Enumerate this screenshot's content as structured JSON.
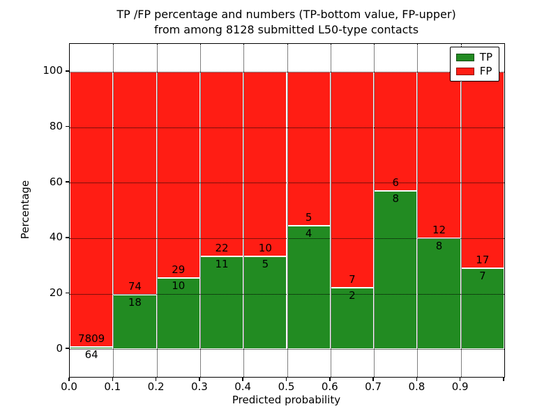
{
  "title": {
    "line1": "TP /FP percentage and numbers (TP-bottom value, FP-upper)",
    "line2": "from among 8128 submitted L50-type contacts"
  },
  "axes": {
    "xlabel": "Predicted probability",
    "ylabel": "Percentage",
    "xtick_labels": [
      "0.0",
      "0.1",
      "0.2",
      "0.3",
      "0.4",
      "0.5",
      "0.6",
      "0.7",
      "0.8",
      "0.9"
    ],
    "ytick_labels": [
      "0",
      "20",
      "40",
      "60",
      "80",
      "100"
    ],
    "ytick_values": [
      0,
      20,
      40,
      60,
      80,
      100
    ],
    "ylim": [
      -10,
      110
    ],
    "xlim": [
      0.0,
      1.0
    ],
    "grid": "dotted"
  },
  "legend": {
    "position": "upper right",
    "items": [
      {
        "label": "TP",
        "color": "#228B22"
      },
      {
        "label": "FP",
        "color": "#FF1D14"
      }
    ]
  },
  "colors": {
    "tp_green": "#228B22",
    "fp_red": "#FF1D14",
    "bar_edge": "#FFFFFF",
    "grid_and_text": "#000000"
  },
  "chart_data": {
    "type": "bar",
    "variant": "stacked-percentage",
    "title": "TP /FP percentage and numbers (TP-bottom value, FP-upper) from among 8128 submitted L50-type contacts",
    "xlabel": "Predicted probability",
    "ylabel": "Percentage",
    "ylim": [
      -10,
      110
    ],
    "xlim": [
      0.0,
      1.0
    ],
    "bin_width": 0.1,
    "bin_starts": [
      0.0,
      0.1,
      0.2,
      0.3,
      0.4,
      0.5,
      0.6,
      0.7,
      0.8,
      0.9
    ],
    "categories": [
      "0.0-0.1",
      "0.1-0.2",
      "0.2-0.3",
      "0.3-0.4",
      "0.4-0.5",
      "0.5-0.6",
      "0.6-0.7",
      "0.7-0.8",
      "0.8-0.9",
      "0.9-1.0"
    ],
    "series": [
      {
        "name": "TP",
        "color": "#228B22",
        "counts": [
          64,
          18,
          10,
          11,
          5,
          4,
          2,
          8,
          8,
          7
        ]
      },
      {
        "name": "FP",
        "color": "#FF1D14",
        "counts": [
          7809,
          74,
          29,
          22,
          10,
          5,
          7,
          6,
          12,
          17
        ]
      }
    ],
    "tp_percent_of_bin": [
      0.81,
      19.57,
      25.64,
      33.33,
      33.33,
      44.44,
      22.22,
      57.14,
      40.0,
      29.17
    ],
    "total_submitted": 8128,
    "grid": "dotted",
    "legend_position": "upper right"
  }
}
